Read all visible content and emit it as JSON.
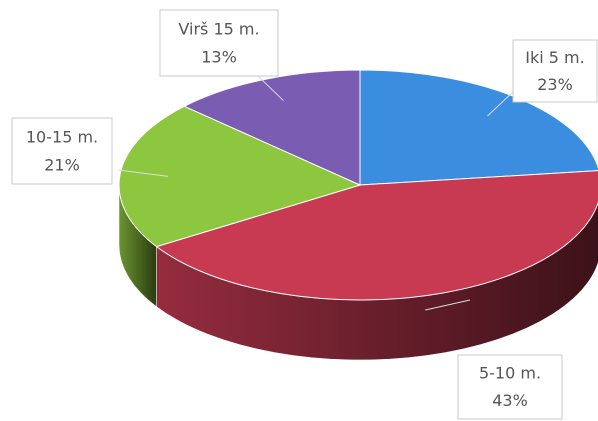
{
  "chart_data": {
    "type": "pie",
    "categories": [
      "Iki 5 m.",
      "5-10 m.",
      "10-15 m.",
      "Virš 15 m."
    ],
    "values": [
      23,
      43,
      21,
      13
    ],
    "value_labels": [
      "23%",
      "43%",
      "21%",
      "13%"
    ],
    "colors": [
      "#3b8de0",
      "#c73a52",
      "#8dc63f",
      "#7a5db3"
    ]
  }
}
